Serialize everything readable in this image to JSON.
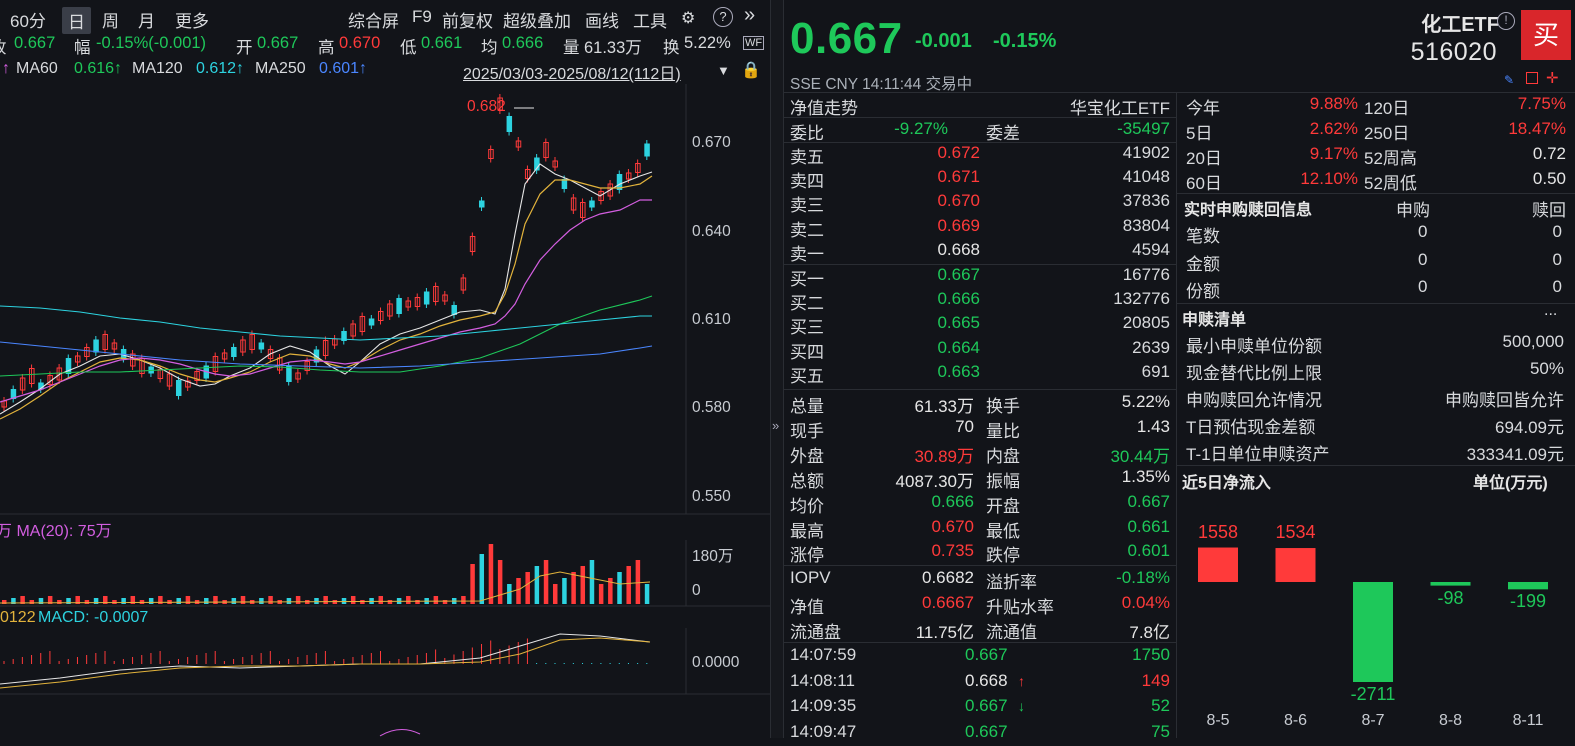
{
  "toolbar": {
    "items": [
      "60分",
      "日",
      "周",
      "月",
      "更多",
      "综合屏",
      "F9",
      "前复权",
      "超级叠加",
      "画线",
      "工具"
    ],
    "active": "日"
  },
  "quote_line": {
    "close_label": "收",
    "close_value": "0.667",
    "range_label": "幅",
    "range_value": "-0.15%(-0.001)",
    "open_label": "开",
    "open_value": "0.667",
    "high_label": "高",
    "high_value": "0.670",
    "low_label": "低",
    "low_value": "0.661",
    "avg_label": "均",
    "avg_value": "0.666",
    "vol_label": "量",
    "vol_value": "61.33万",
    "turnover_label": "换",
    "turnover_value": "5.22%"
  },
  "ma_line": {
    "ma60_label": "MA60",
    "ma60_value": "0.616↑",
    "ma120_label": "MA120",
    "ma120_value": "0.612↑",
    "ma250_label": "MA250",
    "ma250_value": "0.601↑",
    "range": "2025/03/03-2025/08/12(112日)"
  },
  "price_axis": [
    "0.670",
    "0.640",
    "0.610",
    "0.580",
    "0.550"
  ],
  "peak_label": "0.682",
  "volume_panel": {
    "header": "万 MA(20): 75万",
    "axis_top": "180万",
    "axis_bottom": "0"
  },
  "macd_panel": {
    "header_prefix": "0122",
    "header": "MACD: -0.0007",
    "axis": "0.0000"
  },
  "header": {
    "price": "0.667",
    "change": "-0.001",
    "change_pct": "-0.15%",
    "name": "化工ETF",
    "code": "516020",
    "buy_label": "买",
    "sub": "SSE  CNY  14:11:44  交易中"
  },
  "nav_row": {
    "left": "净值走势",
    "right": "华宝化工ETF"
  },
  "weibi": {
    "label": "委比",
    "value": "-9.27%",
    "label2": "委差",
    "value2": "-35497"
  },
  "asks": [
    {
      "label": "卖五",
      "price": "0.672",
      "vol": "41902",
      "color": "red"
    },
    {
      "label": "卖四",
      "price": "0.671",
      "vol": "41048",
      "color": "red"
    },
    {
      "label": "卖三",
      "price": "0.670",
      "vol": "37836",
      "color": "red"
    },
    {
      "label": "卖二",
      "price": "0.669",
      "vol": "83804",
      "color": "red"
    },
    {
      "label": "卖一",
      "price": "0.668",
      "vol": "4594",
      "color": "white"
    }
  ],
  "bids": [
    {
      "label": "买一",
      "price": "0.667",
      "vol": "16776",
      "color": "green"
    },
    {
      "label": "买二",
      "price": "0.666",
      "vol": "132776",
      "color": "green"
    },
    {
      "label": "买三",
      "price": "0.665",
      "vol": "20805",
      "color": "green"
    },
    {
      "label": "买四",
      "price": "0.664",
      "vol": "2639",
      "color": "green"
    },
    {
      "label": "买五",
      "price": "0.663",
      "vol": "691",
      "color": "green"
    }
  ],
  "stats": [
    {
      "l1": "总量",
      "v1": "61.33万",
      "c1": "white",
      "l2": "换手",
      "v2": "5.22%",
      "c2": "white"
    },
    {
      "l1": "现手",
      "v1": "70",
      "c1": "white",
      "l2": "量比",
      "v2": "1.43",
      "c2": "white"
    },
    {
      "l1": "外盘",
      "v1": "30.89万",
      "c1": "red",
      "l2": "内盘",
      "v2": "30.44万",
      "c2": "green"
    },
    {
      "l1": "总额",
      "v1": "4087.30万",
      "c1": "white",
      "l2": "振幅",
      "v2": "1.35%",
      "c2": "white"
    },
    {
      "l1": "均价",
      "v1": "0.666",
      "c1": "green",
      "l2": "开盘",
      "v2": "0.667",
      "c2": "green"
    },
    {
      "l1": "最高",
      "v1": "0.670",
      "c1": "red",
      "l2": "最低",
      "v2": "0.661",
      "c2": "green"
    },
    {
      "l1": "涨停",
      "v1": "0.735",
      "c1": "red",
      "l2": "跌停",
      "v2": "0.601",
      "c2": "green"
    }
  ],
  "iopv": [
    {
      "l1": "IOPV",
      "v1": "0.6682",
      "c1": "white",
      "l2": "溢折率",
      "v2": "-0.18%",
      "c2": "green"
    },
    {
      "l1": "净值",
      "v1": "0.6667",
      "c1": "red",
      "l2": "升贴水率",
      "v2": "0.04%",
      "c2": "red"
    },
    {
      "l1": "流通盘",
      "v1": "11.75亿",
      "c1": "white",
      "l2": "流通值",
      "v2": "7.8亿",
      "c2": "white"
    }
  ],
  "ticks": [
    {
      "time": "14:07:59",
      "price": "0.667",
      "pc": "green",
      "arrow": "",
      "vol": "1750",
      "vc": "green"
    },
    {
      "time": "14:08:11",
      "price": "0.668",
      "pc": "white",
      "arrow": "↑",
      "vol": "149",
      "vc": "red"
    },
    {
      "time": "14:09:35",
      "price": "0.667",
      "pc": "green",
      "arrow": "↓",
      "vol": "52",
      "vc": "green"
    },
    {
      "time": "14:09:47",
      "price": "0.667",
      "pc": "green",
      "arrow": "",
      "vol": "75",
      "vc": "green"
    }
  ],
  "perf": [
    {
      "l1": "今年",
      "v1": "9.88%",
      "l2": "120日",
      "v2": "7.75%",
      "c2": "red"
    },
    {
      "l1": "5日",
      "v1": "2.62%",
      "l2": "250日",
      "v2": "18.47%",
      "c2": "red"
    },
    {
      "l1": "20日",
      "v1": "9.17%",
      "l2": "52周高",
      "v2": "0.72",
      "c2": "white"
    },
    {
      "l1": "60日",
      "v1": "12.10%",
      "l2": "52周低",
      "v2": "0.50",
      "c2": "white"
    }
  ],
  "redeem_info": {
    "title": "实时申购赎回信息",
    "col1": "申购",
    "col2": "赎回",
    "rows": [
      {
        "label": "笔数",
        "v1": "0",
        "v2": "0"
      },
      {
        "label": "金额",
        "v1": "0",
        "v2": "0"
      },
      {
        "label": "份额",
        "v1": "0",
        "v2": "0"
      }
    ]
  },
  "redeem_list": {
    "title": "申赎清单",
    "more": "...",
    "rows": [
      {
        "label": "最小申赎单位份额",
        "value": "500,000"
      },
      {
        "label": "现金替代比例上限",
        "value": "50%"
      },
      {
        "label": "申购赎回允许情况",
        "value": "申购赎回皆允许"
      },
      {
        "label": "T日预估现金差额",
        "value": "694.09元"
      },
      {
        "label": "T-1日单位申赎资产",
        "value": "333341.09元"
      }
    ]
  },
  "inflow": {
    "title": "近5日净流入",
    "unit": "单位(万元)"
  },
  "chart_data": {
    "type": "bar",
    "categories": [
      "8-5",
      "8-6",
      "8-7",
      "8-8",
      "8-11"
    ],
    "values": [
      1558,
      1534,
      -2711,
      -98,
      -199
    ],
    "title": "近5日净流入",
    "ylabel": "单位(万元)",
    "colors": {
      "positive": "#ff3a3a",
      "negative": "#1ec85a"
    }
  }
}
